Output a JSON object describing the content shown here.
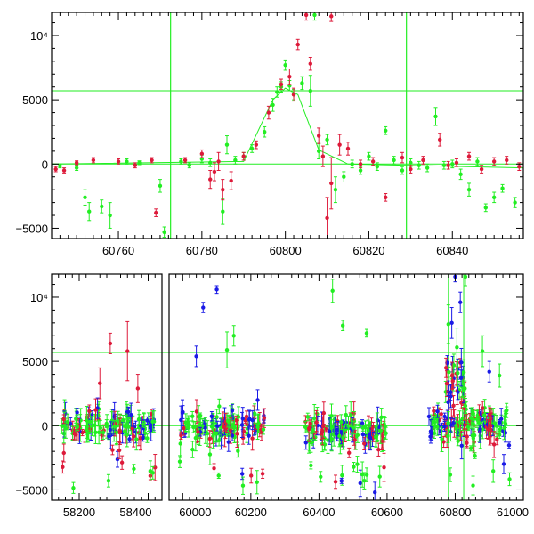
{
  "chart_data": [
    {
      "type": "scatter",
      "title": "",
      "xlabel": "",
      "ylabel": "",
      "xlim": [
        60744,
        60857
      ],
      "ylim": [
        -5800,
        11800
      ],
      "x_ticks": [
        60760,
        60780,
        60800,
        60820,
        60840
      ],
      "x_tick_labels": [
        "60760",
        "60780",
        "60800",
        "60820",
        "60840"
      ],
      "y_ticks": [
        -5000,
        0,
        5000,
        10000
      ],
      "y_tick_labels": [
        "−5000",
        "0",
        "5000",
        "10⁴"
      ],
      "colors": {
        "g": "#22ee22",
        "r": "#dd1a3a",
        "reference": "#22ee22"
      },
      "hlines": [
        5700,
        0
      ],
      "vlines": [
        60772.5,
        60829
      ],
      "model_line": [
        [
          60744,
          0
        ],
        [
          60790,
          200
        ],
        [
          60797,
          5000
        ],
        [
          60800,
          5900
        ],
        [
          60803,
          5400
        ],
        [
          60808,
          1100
        ],
        [
          60815,
          0
        ],
        [
          60857,
          -300
        ]
      ],
      "series": [
        {
          "color_key": "g",
          "points": [
            [
              60746,
              -150,
              150
            ],
            [
              60750,
              -300,
              200
            ],
            [
              60752,
              -2600,
              600
            ],
            [
              60753,
              -3700,
              700
            ],
            [
              60756,
              -3300,
              500
            ],
            [
              60758,
              -4000,
              1000
            ],
            [
              60762,
              200,
              200
            ],
            [
              60765,
              100,
              150
            ],
            [
              60770,
              -1700,
              500
            ],
            [
              60771,
              -5300,
              400
            ],
            [
              60775,
              200,
              200
            ],
            [
              60777,
              -100,
              200
            ],
            [
              60780,
              400,
              300
            ],
            [
              60782,
              100,
              300
            ],
            [
              60785,
              -3700,
              1000
            ],
            [
              60786,
              1500,
              700
            ],
            [
              60788,
              300,
              300
            ],
            [
              60790,
              600,
              300
            ],
            [
              60792,
              1200,
              300
            ],
            [
              60795,
              2500,
              400
            ],
            [
              60797,
              4600,
              500
            ],
            [
              60798,
              5600,
              400
            ],
            [
              60799,
              6000,
              400
            ],
            [
              60800,
              7700,
              400
            ],
            [
              60801,
              6100,
              400
            ],
            [
              60802,
              5400,
              400
            ],
            [
              60804,
              6300,
              500
            ],
            [
              60806,
              5700,
              1200
            ],
            [
              60808,
              1000,
              600
            ],
            [
              60810,
              1900,
              400
            ],
            [
              60812,
              -2000,
              1000
            ],
            [
              60814,
              -1000,
              400
            ],
            [
              60816,
              0,
              300
            ],
            [
              60818,
              -500,
              300
            ],
            [
              60820,
              600,
              300
            ],
            [
              60822,
              -200,
              300
            ],
            [
              60824,
              2600,
              300
            ],
            [
              60826,
              300,
              300
            ],
            [
              60828,
              -500,
              300
            ],
            [
              60830,
              100,
              300
            ],
            [
              60832,
              -100,
              300
            ],
            [
              60834,
              -300,
              300
            ],
            [
              60836,
              3700,
              700
            ],
            [
              60838,
              -100,
              300
            ],
            [
              60840,
              0,
              300
            ],
            [
              60842,
              -800,
              400
            ],
            [
              60844,
              -2000,
              500
            ],
            [
              60846,
              200,
              300
            ],
            [
              60848,
              -3400,
              300
            ],
            [
              60850,
              -2600,
              400
            ],
            [
              60852,
              -1900,
              300
            ],
            [
              60855,
              -3000,
              400
            ],
            [
              60807,
              11600,
              400
            ]
          ]
        },
        {
          "color_key": "r",
          "points": [
            [
              60745,
              -400,
              200
            ],
            [
              60747,
              -500,
              200
            ],
            [
              60750,
              100,
              150
            ],
            [
              60754,
              300,
              200
            ],
            [
              60760,
              200,
              200
            ],
            [
              60764,
              -100,
              200
            ],
            [
              60768,
              300,
              200
            ],
            [
              60769,
              -3800,
              300
            ],
            [
              60776,
              300,
              200
            ],
            [
              60780,
              800,
              300
            ],
            [
              60782,
              -1200,
              700
            ],
            [
              60783,
              -600,
              700
            ],
            [
              60784,
              200,
              700
            ],
            [
              60785,
              -2000,
              800
            ],
            [
              60787,
              -1300,
              700
            ],
            [
              60790,
              600,
              300
            ],
            [
              60793,
              1500,
              300
            ],
            [
              60796,
              4000,
              500
            ],
            [
              60799,
              6200,
              400
            ],
            [
              60801,
              6800,
              600
            ],
            [
              60802,
              5400,
              500
            ],
            [
              60803,
              9300,
              400
            ],
            [
              60805,
              11600,
              400
            ],
            [
              60806,
              7800,
              500
            ],
            [
              60808,
              2200,
              600
            ],
            [
              60809,
              600,
              800
            ],
            [
              60810,
              -4200,
              1600
            ],
            [
              60811,
              -1500,
              2000
            ],
            [
              60813,
              1500,
              800
            ],
            [
              60815,
              1200,
              500
            ],
            [
              60818,
              0,
              300
            ],
            [
              60821,
              200,
              300
            ],
            [
              60824,
              -2600,
              300
            ],
            [
              60828,
              500,
              400
            ],
            [
              60830,
              -400,
              300
            ],
            [
              60833,
              300,
              300
            ],
            [
              60837,
              1900,
              500
            ],
            [
              60839,
              -100,
              300
            ],
            [
              60841,
              100,
              300
            ],
            [
              60844,
              600,
              300
            ],
            [
              60847,
              -400,
              300
            ],
            [
              60850,
              200,
              300
            ],
            [
              60853,
              300,
              300
            ],
            [
              60856,
              -200,
              300
            ],
            [
              60811,
              11500,
              400
            ]
          ]
        }
      ]
    },
    {
      "type": "scatter",
      "title": "",
      "xlabel": "",
      "ylabel": "",
      "xlim": [
        58120,
        61000
      ],
      "ylim": [
        -5800,
        11800
      ],
      "x_ticks": [
        58200,
        58400,
        60000,
        60200,
        60400,
        60600,
        60800,
        61000
      ],
      "x_tick_labels": [
        "58200",
        "58400",
        "60000",
        "60200",
        "60400",
        "60600",
        "60800",
        "61000"
      ],
      "axis_break": {
        "left_segment": [
          58120,
          58440
        ],
        "right_segment": [
          59960,
          61000
        ]
      },
      "y_ticks": [
        -5000,
        0,
        5000,
        10000
      ],
      "y_tick_labels": [
        "−5000",
        "0",
        "5000",
        "10⁴"
      ],
      "colors": {
        "g": "#22ee22",
        "r": "#dd1a3a",
        "b": "#1a1ae6",
        "reference": "#22ee22"
      },
      "hlines": [
        5700,
        0
      ],
      "vlines": [
        60780,
        60825
      ],
      "groups": [
        {
          "x_range": [
            58150,
            58420
          ],
          "y_center": 0,
          "spread": 1500
        },
        {
          "x_range": [
            59990,
            60240
          ],
          "y_center": 0,
          "spread": 1500
        },
        {
          "x_range": [
            60360,
            60600
          ],
          "y_center": -300,
          "spread": 1600
        },
        {
          "x_range": [
            60720,
            60960
          ],
          "y_center": 0,
          "spread": 1800
        }
      ],
      "peaks": [
        {
          "color_key": "r",
          "points": [
            [
              58290,
              6400,
              800
            ],
            [
              58340,
              5800,
              2300
            ],
            [
              58260,
              3300,
              1200
            ],
            [
              58370,
              2900,
              1100
            ]
          ]
        },
        {
          "color_key": "b",
          "points": [
            [
              60060,
              9200,
              400
            ],
            [
              60100,
              10600,
              300
            ],
            [
              60040,
              5400,
              800
            ],
            [
              60220,
              2000,
              800
            ],
            [
              60790,
              8000,
              1200
            ],
            [
              60800,
              11600,
              400
            ],
            [
              60815,
              9600,
              800
            ],
            [
              60900,
              4200,
              800
            ]
          ]
        },
        {
          "color_key": "g",
          "points": [
            [
              60130,
              5900,
              1400
            ],
            [
              60150,
              7000,
              800
            ],
            [
              60440,
              10500,
              900
            ],
            [
              60470,
              7800,
              400
            ],
            [
              60540,
              7200,
              300
            ],
            [
              60780,
              7900,
              1500
            ],
            [
              60805,
              6100,
              1500
            ],
            [
              60830,
              11600,
              700
            ],
            [
              60880,
              5800,
              1200
            ],
            [
              60930,
              3900,
              900
            ]
          ]
        }
      ]
    }
  ]
}
